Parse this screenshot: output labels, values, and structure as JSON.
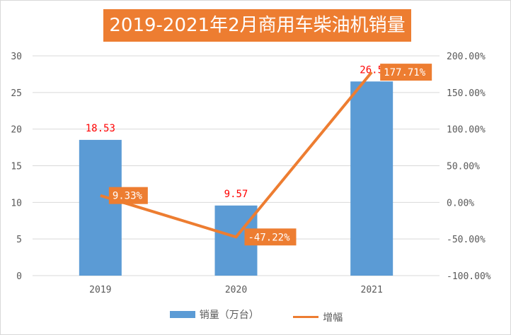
{
  "chart_data": {
    "type": "bar+line",
    "title": "2019-2021年2月商用车柴油机销量",
    "categories": [
      "2019",
      "2020",
      "2021"
    ],
    "series": [
      {
        "name": "销量（万台）",
        "type": "bar",
        "axis": "left",
        "values": [
          18.53,
          9.57,
          26.5
        ],
        "labels": [
          "18.53",
          "9.57",
          "26.5"
        ],
        "color": "#5b9bd5"
      },
      {
        "name": "增幅",
        "type": "line",
        "axis": "right",
        "values": [
          9.33,
          -47.22,
          177.71
        ],
        "labels": [
          "9.33%",
          "-47.22%",
          "177.71%"
        ],
        "color": "#ed7d31"
      }
    ],
    "ylim": [
      0,
      30
    ],
    "yticks": [
      "0",
      "5",
      "10",
      "15",
      "20",
      "25",
      "30"
    ],
    "y2lim": [
      -100,
      200
    ],
    "y2ticks": [
      "-100.00%",
      "-50.00%",
      "0.00%",
      "50.00%",
      "100.00%",
      "150.00%",
      "200.00%"
    ],
    "grid": true,
    "legend": "bottom"
  }
}
